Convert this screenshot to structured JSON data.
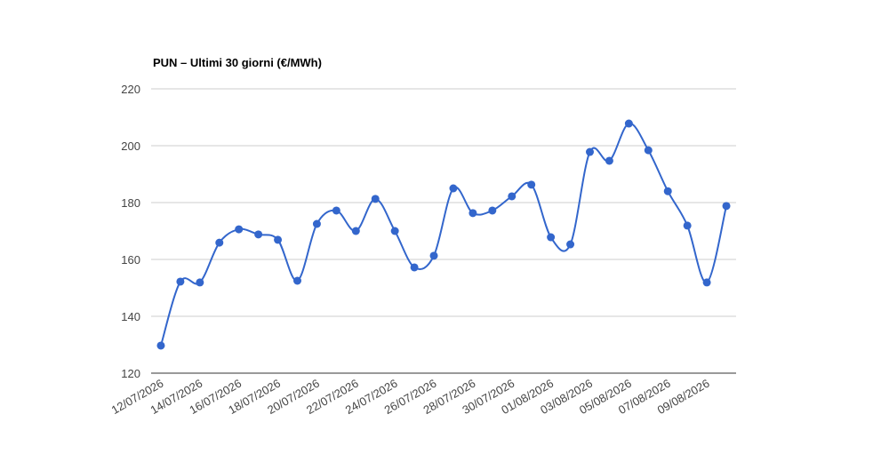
{
  "chart_data": {
    "type": "line",
    "title": "PUN – Ultimi 30 giorni (€/MWh)",
    "categories": [
      "12/07/2026",
      null,
      "14/07/2026",
      null,
      "16/07/2026",
      null,
      "18/07/2026",
      null,
      "20/07/2026",
      null,
      "22/07/2026",
      null,
      "24/07/2026",
      null,
      "26/07/2026",
      null,
      "28/07/2026",
      null,
      "30/07/2026",
      null,
      "01/08/2026",
      null,
      "03/08/2026",
      null,
      "05/08/2026",
      null,
      "07/08/2026",
      null,
      "09/08/2026",
      null
    ],
    "series": [
      {
        "name": "PUN",
        "color": "#3366cc",
        "values": [
          129.7,
          152.2,
          151.9,
          165.9,
          170.6,
          168.8,
          166.9,
          152.5,
          172.5,
          177.2,
          170,
          181.3,
          170,
          157.2,
          161.3,
          185,
          176.3,
          177.2,
          182.2,
          186.3,
          167.8,
          165.3,
          197.8,
          194.7,
          207.8,
          198.4,
          184,
          171.9,
          151.9,
          178.8
        ]
      }
    ],
    "ylim": [
      120,
      220
    ],
    "yticks": [
      120,
      140,
      160,
      180,
      200,
      220
    ],
    "grid": true,
    "smooth": true
  }
}
